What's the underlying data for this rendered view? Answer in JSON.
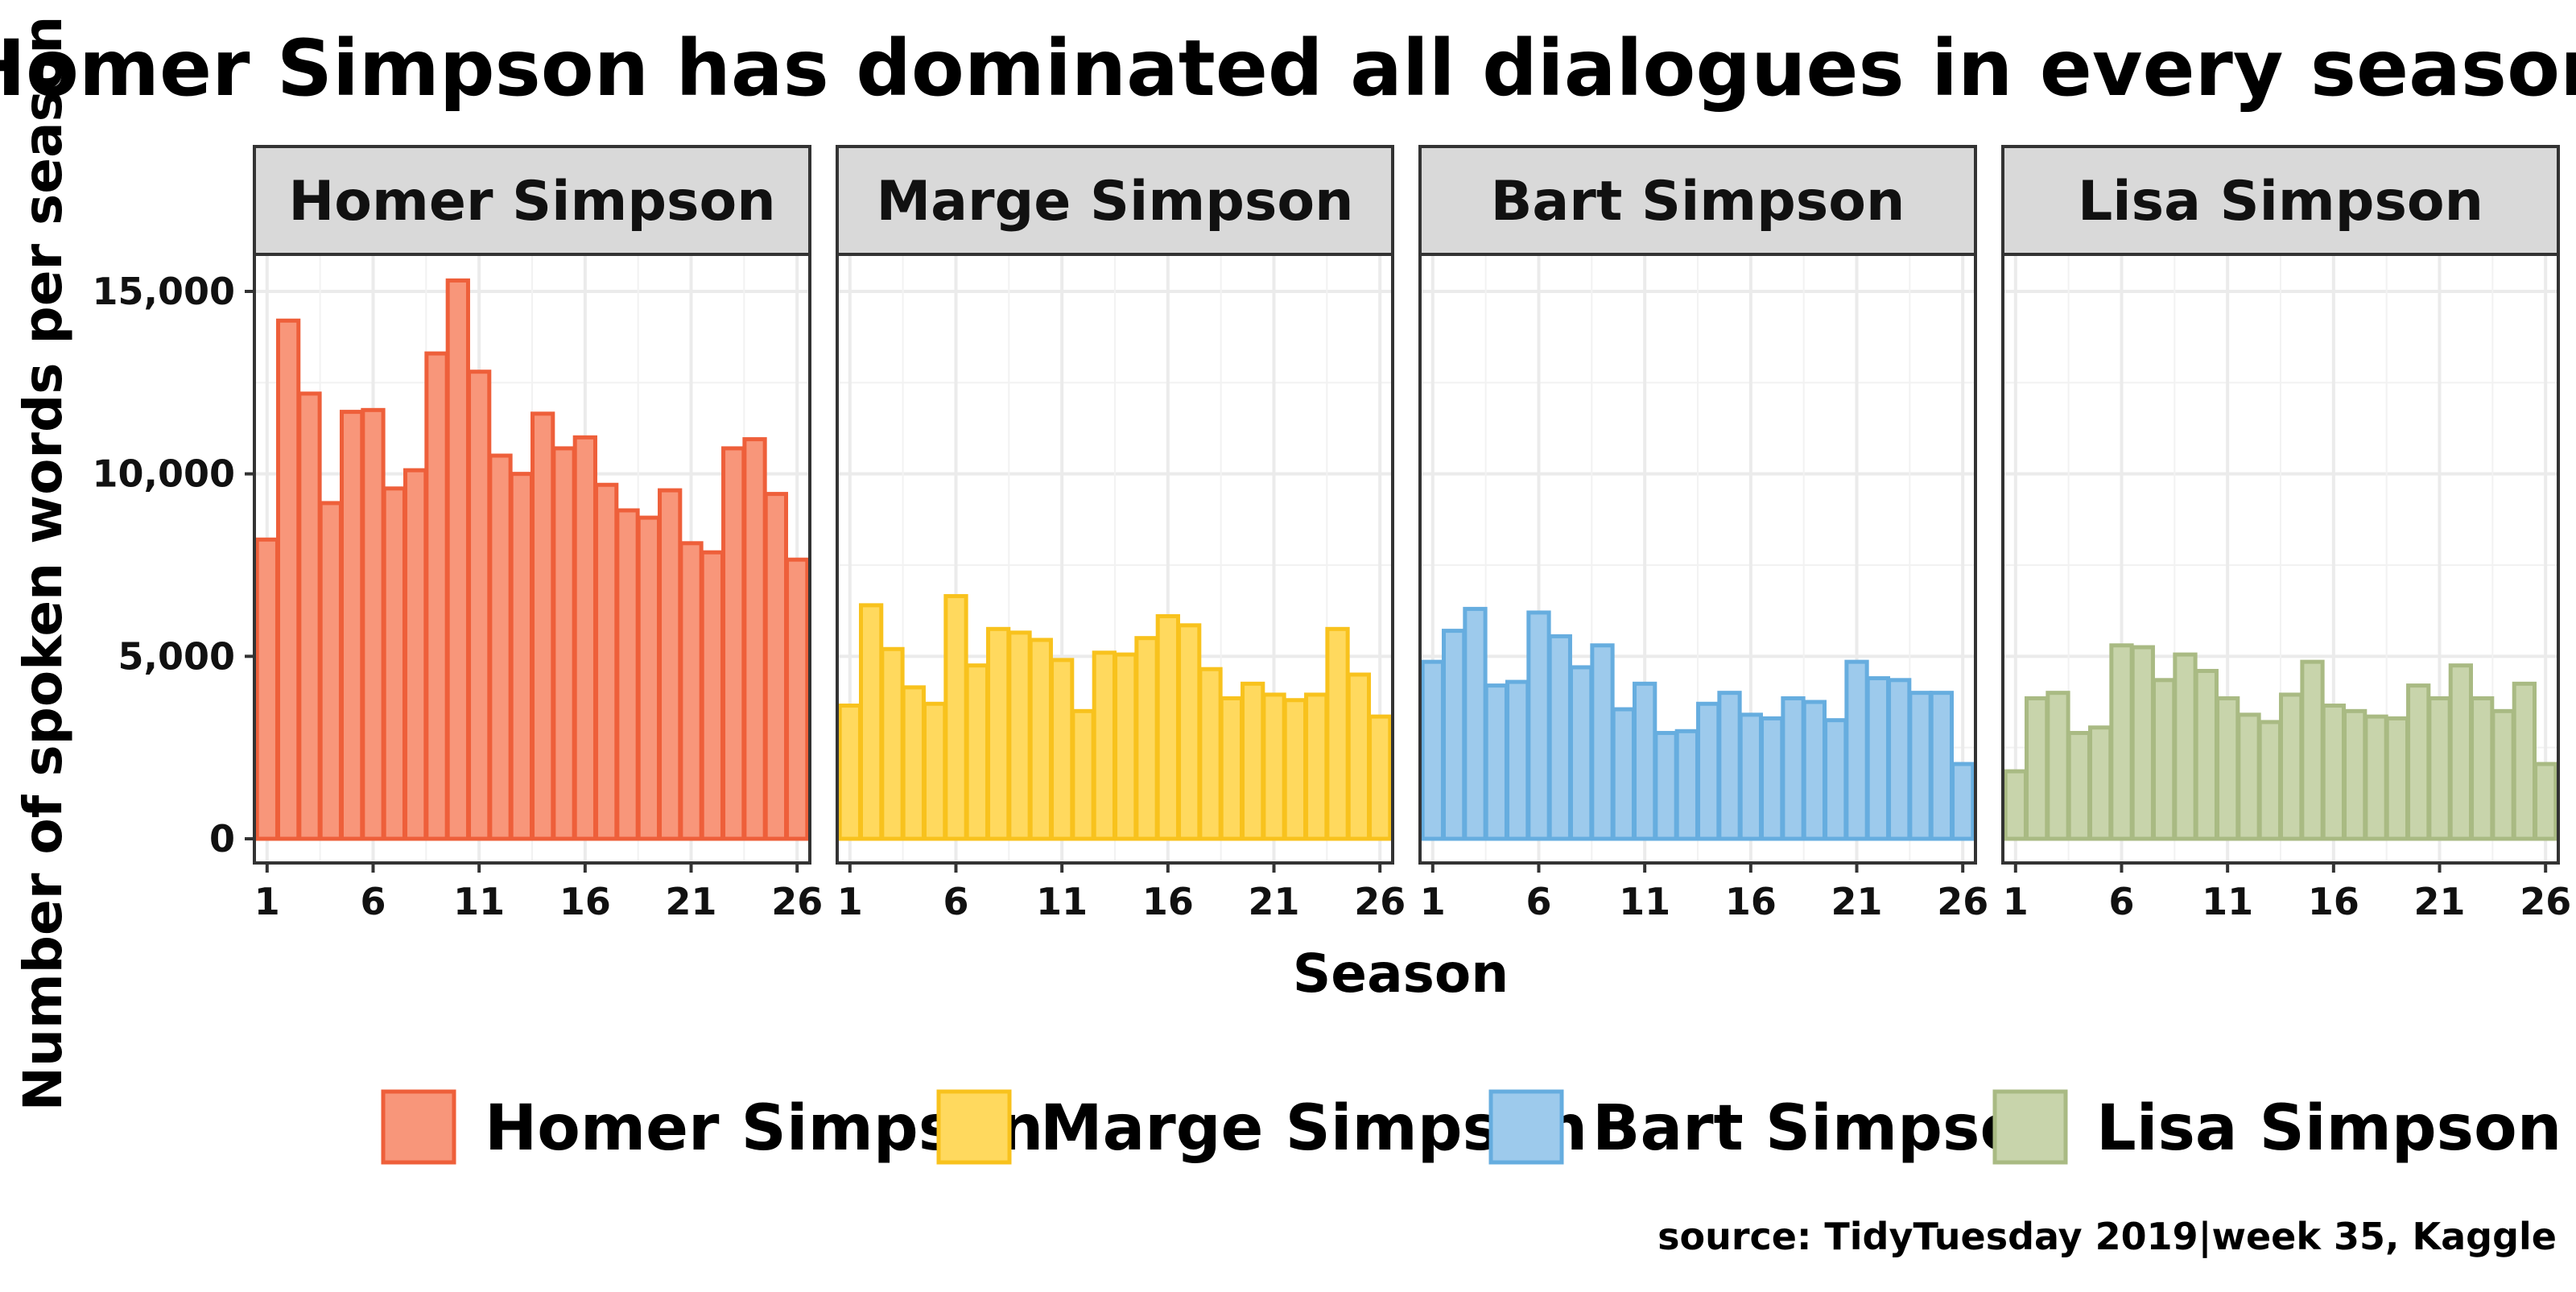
{
  "chart_data": {
    "type": "bar",
    "title": "Homer Simpson has dominated all dialogues in every season",
    "xlabel": "Season",
    "ylabel": "Number of spoken words per season",
    "caption": "source: TidyTuesday 2019|week 35, Kaggle",
    "seasons": [
      1,
      2,
      3,
      4,
      5,
      6,
      7,
      8,
      9,
      10,
      11,
      12,
      13,
      14,
      15,
      16,
      17,
      18,
      19,
      20,
      21,
      22,
      23,
      24,
      25,
      26
    ],
    "x_ticks": [
      1,
      6,
      11,
      16,
      21,
      26
    ],
    "y_ticks": [
      0,
      5000,
      10000,
      15000
    ],
    "y_tick_labels": [
      "0",
      "5,000",
      "10,000",
      "15,000"
    ],
    "ylim": [
      0,
      18000
    ],
    "grid": true,
    "legend_position": "bottom",
    "series": [
      {
        "name": "Homer Simpson",
        "fill": "#f8967a",
        "stroke": "#ee5f3a",
        "values": [
          8200,
          14200,
          12200,
          9200,
          11700,
          11750,
          9600,
          10100,
          13300,
          15300,
          12800,
          10500,
          10000,
          11650,
          10700,
          11000,
          9700,
          9000,
          8800,
          9550,
          8100,
          7850,
          10700,
          10950,
          9450,
          7650
        ]
      },
      {
        "name": "Marge Simpson",
        "fill": "#ffd95e",
        "stroke": "#f8c21d",
        "values": [
          3650,
          6400,
          5200,
          4150,
          3700,
          6650,
          4750,
          5750,
          5650,
          5450,
          4900,
          3500,
          5100,
          5050,
          5500,
          6100,
          5850,
          4650,
          3850,
          4250,
          3950,
          3800,
          3950,
          5750,
          4500,
          3350
        ]
      },
      {
        "name": "Bart Simpson",
        "fill": "#9dcaec",
        "stroke": "#66addf",
        "values": [
          4850,
          5700,
          6300,
          4200,
          4300,
          6200,
          5550,
          4700,
          5300,
          3550,
          4250,
          2900,
          2950,
          3700,
          4000,
          3400,
          3300,
          3850,
          3750,
          3250,
          4850,
          4400,
          4350,
          4000,
          4000,
          2050
        ]
      },
      {
        "name": "Lisa Simpson",
        "fill": "#c8d4ab",
        "stroke": "#a9ba83",
        "values": [
          1850,
          3850,
          4000,
          2900,
          3050,
          5300,
          5250,
          4350,
          5050,
          4600,
          3850,
          3400,
          3200,
          3950,
          4850,
          3650,
          3500,
          3350,
          3300,
          4200,
          3850,
          4750,
          3850,
          3500,
          4250,
          2050
        ]
      }
    ]
  }
}
